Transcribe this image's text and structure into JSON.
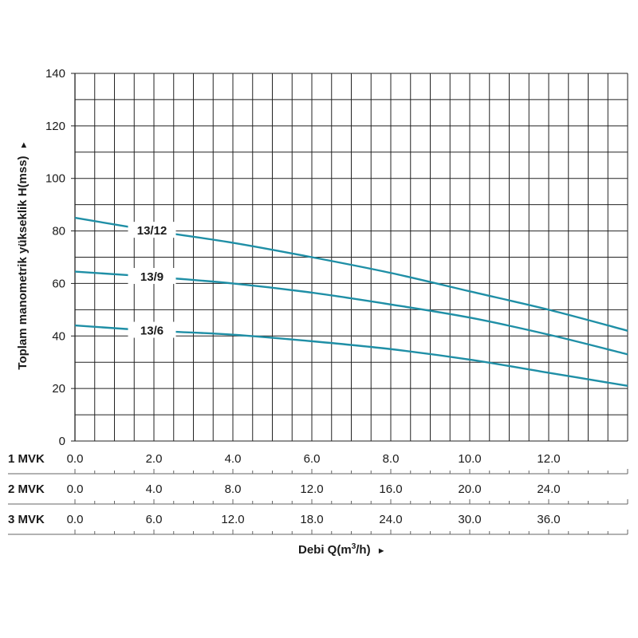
{
  "chart_data": {
    "type": "line",
    "ylabel": "Toplam manometrik yükseklik H(mss)",
    "xlabel_prefix": "Debi Q(m",
    "xlabel_sup": "3",
    "xlabel_suffix": "/h)",
    "arrow": "►",
    "ylim": [
      0,
      140
    ],
    "yticks": [
      "0",
      "20",
      "40",
      "60",
      "80",
      "100",
      "120",
      "140"
    ],
    "xlim": [
      0,
      14
    ],
    "grid": true,
    "x_scales": [
      {
        "label": "1 MVK",
        "ticks": [
          "0.0",
          "2.0",
          "4.0",
          "6.0",
          "8.0",
          "10.0",
          "12.0"
        ]
      },
      {
        "label": "2 MVK",
        "ticks": [
          "0.0",
          "4.0",
          "8.0",
          "12.0",
          "16.0",
          "20.0",
          "24.0"
        ]
      },
      {
        "label": "3 MVK",
        "ticks": [
          "0.0",
          "6.0",
          "12.0",
          "18.0",
          "24.0",
          "30.0",
          "36.0"
        ]
      }
    ],
    "x_scale_reference": "1 MVK",
    "series": [
      {
        "name": "13/12",
        "x": [
          0,
          2,
          4,
          6,
          8,
          10,
          12,
          14
        ],
        "y": [
          85,
          80,
          75.5,
          70,
          64,
          57,
          50,
          42
        ]
      },
      {
        "name": "13/9",
        "x": [
          0,
          2,
          4,
          6,
          8,
          10,
          12,
          14
        ],
        "y": [
          64.5,
          62.5,
          60,
          56.5,
          52,
          47,
          40.5,
          33
        ]
      },
      {
        "name": "13/6",
        "x": [
          0,
          2,
          4,
          6,
          8,
          10,
          12,
          14
        ],
        "y": [
          44,
          42,
          40.5,
          38,
          35,
          31,
          26,
          21
        ]
      }
    ],
    "line_color": "#1f8fa6"
  }
}
